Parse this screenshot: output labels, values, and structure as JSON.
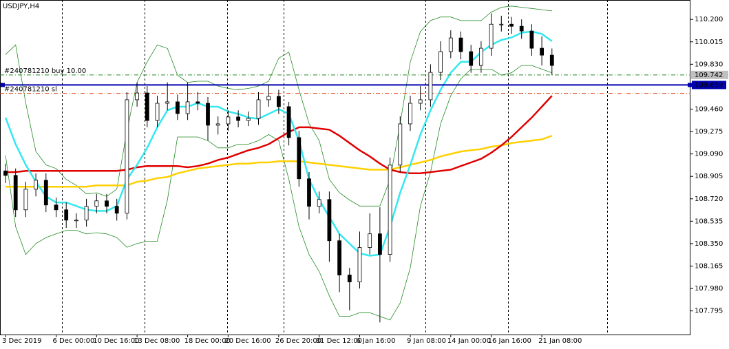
{
  "chart_data": {
    "type": "candlestick",
    "title": "USDJPY,H4",
    "categories": [
      "3 Dec 2019",
      null,
      null,
      null,
      null,
      "6 Dec 00:00",
      null,
      null,
      null,
      "10 Dec 16:00",
      null,
      null,
      null,
      "13 Dec 08:00",
      null,
      null,
      null,
      null,
      "18 Dec 00:00",
      null,
      null,
      null,
      "20 Dec 16:00",
      null,
      null,
      null,
      null,
      "26 Dec 20:00",
      null,
      null,
      null,
      "31 Dec 12:00",
      null,
      null,
      null,
      "6 Jan 16:00",
      null,
      null,
      null,
      null,
      "9 Jan 08:00",
      null,
      null,
      null,
      "14 Jan 00:00",
      null,
      null,
      null,
      "16 Jan 16:00",
      null,
      null,
      null,
      null,
      "21 Jan 08:00",
      null
    ],
    "candles": {
      "open": [
        108.95,
        108.913,
        108.629,
        108.799,
        108.873,
        108.669,
        108.629,
        108.544,
        108.544,
        108.658,
        108.703,
        108.658,
        108.601,
        109.537,
        109.593,
        109.366,
        109.508,
        109.52,
        109.423,
        109.52,
        109.508,
        109.327,
        109.338,
        109.395,
        109.366,
        109.383,
        109.537,
        109.565,
        109.48,
        109.225,
        108.885,
        108.658,
        108.714,
        108.374,
        108.091,
        108.034,
        108.318,
        108.431,
        108.261,
        108.998,
        109.338,
        109.508,
        109.537,
        109.763,
        109.934,
        110.047,
        109.934,
        109.82,
        109.962,
        110.16,
        110.16,
        110.143,
        110.104,
        109.962,
        109.905
      ],
      "high": [
        109.01,
        108.97,
        108.86,
        108.93,
        108.93,
        108.73,
        108.69,
        108.6,
        108.72,
        108.76,
        108.76,
        108.72,
        109.6,
        109.68,
        109.65,
        109.57,
        109.68,
        109.58,
        109.68,
        109.6,
        109.56,
        109.4,
        109.45,
        109.45,
        109.44,
        109.6,
        109.66,
        109.62,
        109.52,
        109.28,
        108.94,
        108.78,
        108.78,
        108.43,
        108.15,
        108.45,
        108.6,
        108.65,
        109.06,
        109.4,
        109.57,
        109.65,
        109.83,
        110.02,
        110.11,
        110.1,
        109.99,
        110.02,
        110.25,
        110.23,
        110.22,
        110.2,
        110.16,
        110.06,
        109.96
      ],
      "low": [
        108.85,
        108.57,
        108.57,
        108.74,
        108.61,
        108.57,
        108.48,
        108.48,
        108.49,
        108.6,
        108.6,
        108.54,
        108.55,
        109.48,
        109.31,
        109.31,
        109.45,
        109.37,
        109.37,
        109.45,
        109.2,
        109.25,
        109.28,
        109.31,
        109.32,
        109.33,
        109.48,
        109.42,
        109.16,
        108.82,
        108.55,
        108.6,
        108.2,
        107.95,
        107.8,
        107.98,
        108.26,
        107.7,
        108.2,
        108.94,
        109.28,
        109.45,
        109.48,
        109.7,
        109.88,
        109.87,
        109.76,
        109.76,
        109.9,
        110.1,
        110.08,
        110.04,
        109.9,
        109.82,
        109.74
      ],
      "close": [
        108.913,
        108.629,
        108.799,
        108.873,
        108.669,
        108.629,
        108.544,
        108.544,
        108.658,
        108.703,
        108.658,
        108.601,
        109.537,
        109.593,
        109.366,
        109.508,
        109.52,
        109.423,
        109.52,
        109.508,
        109.327,
        109.338,
        109.395,
        109.366,
        109.383,
        109.537,
        109.565,
        109.48,
        109.225,
        108.885,
        108.658,
        108.714,
        108.374,
        108.091,
        108.034,
        108.318,
        108.431,
        108.261,
        108.998,
        109.338,
        109.508,
        109.537,
        109.763,
        109.934,
        110.047,
        109.934,
        109.82,
        109.962,
        110.16,
        110.16,
        110.143,
        110.104,
        109.962,
        109.905,
        109.82
      ],
      "up_color": "#ffffff",
      "down_color": "#000000",
      "edge_color": "#000000"
    },
    "series": [
      {
        "color": "#228b22",
        "width": 0.8,
        "values": [
          109.91,
          109.99,
          109.51,
          109.11,
          109.0,
          108.97,
          108.88,
          108.83,
          108.76,
          108.77,
          108.74,
          108.8,
          109.28,
          109.68,
          109.85,
          109.99,
          109.96,
          109.74,
          109.68,
          109.69,
          109.69,
          109.65,
          109.63,
          109.62,
          109.63,
          109.65,
          109.69,
          109.88,
          109.93,
          109.62,
          109.34,
          109.2,
          108.88,
          108.77,
          108.71,
          108.66,
          108.66,
          108.66,
          108.88,
          109.34,
          109.85,
          110.1,
          110.19,
          110.22,
          110.22,
          110.19,
          110.19,
          110.19,
          110.26,
          110.3,
          110.31,
          110.3,
          110.29,
          110.28,
          110.27
        ]
      },
      {
        "color": "#228b22",
        "width": 0.8,
        "values": [
          109.08,
          108.49,
          108.26,
          108.35,
          108.4,
          108.43,
          108.46,
          108.46,
          108.43,
          108.44,
          108.43,
          108.4,
          108.32,
          108.35,
          108.37,
          108.37,
          108.71,
          109.23,
          109.23,
          109.23,
          109.2,
          109.14,
          109.14,
          109.17,
          109.17,
          109.2,
          109.25,
          109.2,
          108.88,
          108.49,
          108.26,
          108.12,
          107.92,
          107.75,
          107.75,
          107.78,
          107.78,
          107.75,
          107.72,
          107.86,
          108.15,
          108.66,
          108.94,
          109.34,
          109.57,
          109.71,
          109.79,
          109.79,
          109.79,
          109.74,
          109.76,
          109.82,
          109.82,
          109.79,
          109.76
        ]
      },
      {
        "color": "#ffd000",
        "width": 2.5,
        "values": [
          108.82,
          108.82,
          108.82,
          108.82,
          108.82,
          108.82,
          108.82,
          108.82,
          108.82,
          108.83,
          108.83,
          108.83,
          108.83,
          108.86,
          108.87,
          108.89,
          108.9,
          108.93,
          108.95,
          108.97,
          108.98,
          108.99,
          109.0,
          109.01,
          109.01,
          109.02,
          109.02,
          109.03,
          109.03,
          109.03,
          109.02,
          109.01,
          109.0,
          108.99,
          108.98,
          108.97,
          108.96,
          108.96,
          108.96,
          108.98,
          109.0,
          109.02,
          109.04,
          109.07,
          109.09,
          109.11,
          109.12,
          109.13,
          109.15,
          109.16,
          109.18,
          109.19,
          109.2,
          109.21,
          109.24
        ]
      },
      {
        "color": "#e00000",
        "width": 2.5,
        "values": [
          108.94,
          108.94,
          108.95,
          108.95,
          108.95,
          108.95,
          108.95,
          108.95,
          108.95,
          108.95,
          108.95,
          108.95,
          108.96,
          108.98,
          108.99,
          108.99,
          108.99,
          108.99,
          108.98,
          108.99,
          109.01,
          109.04,
          109.06,
          109.09,
          109.12,
          109.14,
          109.17,
          109.22,
          109.27,
          109.31,
          109.31,
          109.3,
          109.29,
          109.24,
          109.18,
          109.12,
          109.07,
          109.01,
          108.96,
          108.94,
          108.93,
          108.93,
          108.94,
          108.95,
          108.96,
          108.99,
          109.02,
          109.05,
          109.1,
          109.16,
          109.23,
          109.31,
          109.39,
          109.48,
          109.57
        ]
      },
      {
        "color": "#33e8f0",
        "width": 2.5,
        "values": [
          109.39,
          109.17,
          109.0,
          108.86,
          108.74,
          108.69,
          108.69,
          108.66,
          108.63,
          108.62,
          108.62,
          108.66,
          108.88,
          109.0,
          109.14,
          109.31,
          109.45,
          109.48,
          109.48,
          109.51,
          109.48,
          109.48,
          109.44,
          109.42,
          109.39,
          109.38,
          109.42,
          109.46,
          109.42,
          109.2,
          108.88,
          108.71,
          108.57,
          108.43,
          108.35,
          108.27,
          108.25,
          108.26,
          108.49,
          108.77,
          109.0,
          109.25,
          109.45,
          109.62,
          109.76,
          109.85,
          109.85,
          109.93,
          109.99,
          110.03,
          110.05,
          110.09,
          110.1,
          110.08,
          110.02
        ]
      }
    ],
    "orders": [
      {
        "text": "#240781210 buy 10.00",
        "price": 109.742,
        "color": "#228b22"
      },
      {
        "text": "#240781210 sl",
        "price": 109.59,
        "color": "#e04010"
      }
    ],
    "bid": {
      "price": 109.659,
      "color": "#0000b0"
    },
    "ylim": [
      107.6,
      110.36
    ],
    "yticks": [
      {
        "value": 110.2,
        "label": "110.200"
      },
      110.015,
      {
        "value": 109.83,
        "label": "109.830"
      },
      {
        "value": 109.46,
        "label": "109.460"
      },
      109.275,
      {
        "value": 109.09,
        "label": "109.090"
      },
      108.905,
      {
        "value": 108.72,
        "label": "108.720"
      },
      108.535,
      {
        "value": 108.35,
        "label": "108.350"
      },
      108.165,
      {
        "value": 107.98,
        "label": "107.980"
      },
      107.795
    ]
  }
}
